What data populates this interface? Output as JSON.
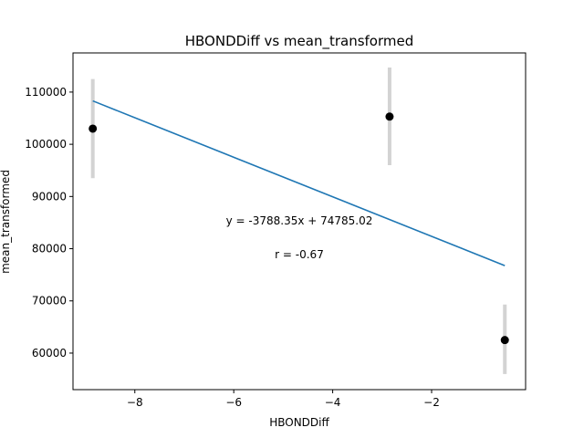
{
  "chart_data": {
    "type": "scatter",
    "title": "HBONDDiff vs mean_transformed",
    "xlabel": "HBONDDiff",
    "ylabel": "mean_transformed",
    "xlim": [
      -9.25,
      -0.1
    ],
    "ylim": [
      53000,
      117500
    ],
    "xticks": [
      -8,
      -6,
      -4,
      -2
    ],
    "xtick_labels": [
      "−8",
      "−6",
      "−4",
      "−2"
    ],
    "yticks": [
      60000,
      70000,
      80000,
      90000,
      100000,
      110000
    ],
    "ytick_labels": [
      "60000",
      "70000",
      "80000",
      "90000",
      "100000",
      "110000"
    ],
    "grid": false,
    "series": [
      {
        "points": [
          {
            "x": -8.85,
            "y": 103000,
            "err_low": 93500,
            "err_high": 112500
          },
          {
            "x": -2.85,
            "y": 105300,
            "err_low": 96000,
            "err_high": 114700
          },
          {
            "x": -0.52,
            "y": 62500,
            "err_low": 56000,
            "err_high": 69300
          }
        ],
        "marker_color": "#000000",
        "errorbar_color": "#d3d3d3"
      }
    ],
    "fit_line": {
      "slope": -3788.35,
      "intercept": 74785.02,
      "x_range": [
        -8.85,
        -0.52
      ],
      "color": "#1f77b4"
    },
    "annotations": {
      "equation": "y = -3788.35x + 74785.02",
      "r_value": "r = -0.67"
    }
  }
}
